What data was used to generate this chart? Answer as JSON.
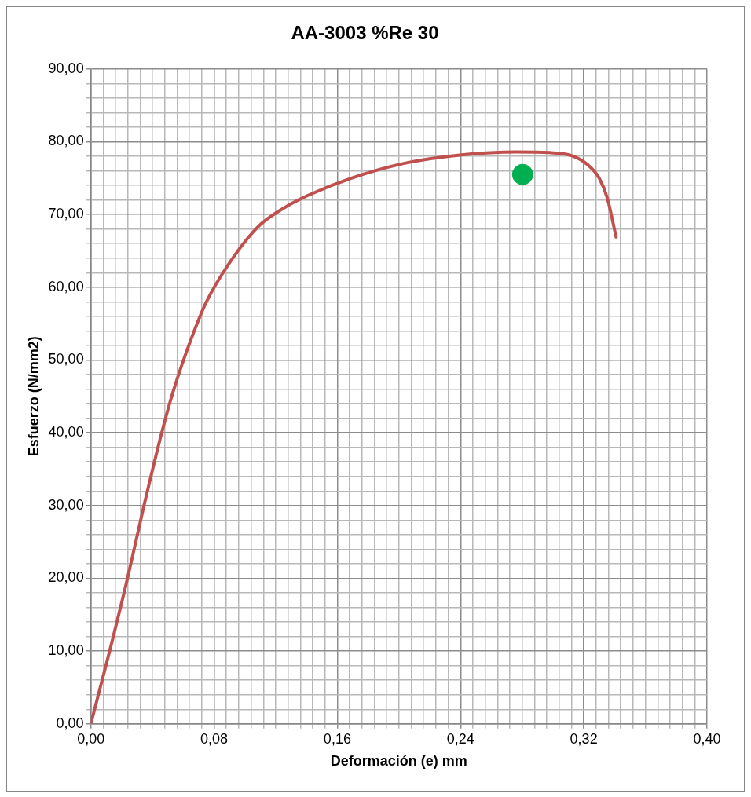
{
  "chart_data": {
    "type": "line",
    "title": "AA-3003 %Re 30",
    "xlabel": "Deformación (e) mm",
    "ylabel": "Esfuerzo (N/mm2)",
    "xlim": [
      0,
      0.4
    ],
    "ylim": [
      0,
      90
    ],
    "xticks": [
      {
        "value": 0,
        "label": "0,00"
      },
      {
        "value": 0.008,
        "label": null
      },
      {
        "value": 0.016,
        "label": null
      },
      {
        "value": 0.024,
        "label": null
      },
      {
        "value": 0.032,
        "label": null
      },
      {
        "value": 0.04,
        "label": null
      },
      {
        "value": 0.048,
        "label": null
      },
      {
        "value": 0.056,
        "label": null
      },
      {
        "value": 0.064,
        "label": null
      },
      {
        "value": 0.072,
        "label": null
      },
      {
        "value": 0.08,
        "label": "0,08"
      },
      {
        "value": 0.088,
        "label": null
      },
      {
        "value": 0.096,
        "label": null
      },
      {
        "value": 0.104,
        "label": null
      },
      {
        "value": 0.112,
        "label": null
      },
      {
        "value": 0.12,
        "label": null
      },
      {
        "value": 0.128,
        "label": null
      },
      {
        "value": 0.136,
        "label": null
      },
      {
        "value": 0.144,
        "label": null
      },
      {
        "value": 0.152,
        "label": null
      },
      {
        "value": 0.16,
        "label": "0,16"
      },
      {
        "value": 0.168,
        "label": null
      },
      {
        "value": 0.176,
        "label": null
      },
      {
        "value": 0.184,
        "label": null
      },
      {
        "value": 0.192,
        "label": null
      },
      {
        "value": 0.2,
        "label": null
      },
      {
        "value": 0.208,
        "label": null
      },
      {
        "value": 0.216,
        "label": null
      },
      {
        "value": 0.224,
        "label": null
      },
      {
        "value": 0.232,
        "label": null
      },
      {
        "value": 0.24,
        "label": "0,24"
      },
      {
        "value": 0.248,
        "label": null
      },
      {
        "value": 0.256,
        "label": null
      },
      {
        "value": 0.264,
        "label": null
      },
      {
        "value": 0.272,
        "label": null
      },
      {
        "value": 0.28,
        "label": null
      },
      {
        "value": 0.288,
        "label": null
      },
      {
        "value": 0.296,
        "label": null
      },
      {
        "value": 0.304,
        "label": null
      },
      {
        "value": 0.312,
        "label": null
      },
      {
        "value": 0.32,
        "label": "0,32"
      },
      {
        "value": 0.328,
        "label": null
      },
      {
        "value": 0.336,
        "label": null
      },
      {
        "value": 0.344,
        "label": null
      },
      {
        "value": 0.352,
        "label": null
      },
      {
        "value": 0.36,
        "label": null
      },
      {
        "value": 0.368,
        "label": null
      },
      {
        "value": 0.376,
        "label": null
      },
      {
        "value": 0.384,
        "label": null
      },
      {
        "value": 0.392,
        "label": null
      },
      {
        "value": 0.4,
        "label": "0,40"
      }
    ],
    "yticks": [
      {
        "value": 0,
        "label": "0,00"
      },
      {
        "value": 2,
        "label": null
      },
      {
        "value": 4,
        "label": null
      },
      {
        "value": 6,
        "label": null
      },
      {
        "value": 8,
        "label": null
      },
      {
        "value": 10,
        "label": "10,00"
      },
      {
        "value": 12,
        "label": null
      },
      {
        "value": 14,
        "label": null
      },
      {
        "value": 16,
        "label": null
      },
      {
        "value": 18,
        "label": null
      },
      {
        "value": 20,
        "label": "20,00"
      },
      {
        "value": 22,
        "label": null
      },
      {
        "value": 24,
        "label": null
      },
      {
        "value": 26,
        "label": null
      },
      {
        "value": 28,
        "label": null
      },
      {
        "value": 30,
        "label": "30,00"
      },
      {
        "value": 32,
        "label": null
      },
      {
        "value": 34,
        "label": null
      },
      {
        "value": 36,
        "label": null
      },
      {
        "value": 38,
        "label": null
      },
      {
        "value": 40,
        "label": "40,00"
      },
      {
        "value": 42,
        "label": null
      },
      {
        "value": 44,
        "label": null
      },
      {
        "value": 46,
        "label": null
      },
      {
        "value": 48,
        "label": null
      },
      {
        "value": 50,
        "label": "50,00"
      },
      {
        "value": 52,
        "label": null
      },
      {
        "value": 54,
        "label": null
      },
      {
        "value": 56,
        "label": null
      },
      {
        "value": 58,
        "label": null
      },
      {
        "value": 60,
        "label": "60,00"
      },
      {
        "value": 62,
        "label": null
      },
      {
        "value": 64,
        "label": null
      },
      {
        "value": 66,
        "label": null
      },
      {
        "value": 68,
        "label": null
      },
      {
        "value": 70,
        "label": "70,00"
      },
      {
        "value": 72,
        "label": null
      },
      {
        "value": 74,
        "label": null
      },
      {
        "value": 76,
        "label": null
      },
      {
        "value": 78,
        "label": null
      },
      {
        "value": 80,
        "label": "80,00"
      },
      {
        "value": 82,
        "label": null
      },
      {
        "value": 84,
        "label": null
      },
      {
        "value": 86,
        "label": null
      },
      {
        "value": 88,
        "label": null
      },
      {
        "value": 90,
        "label": "90,00"
      }
    ],
    "grid": true,
    "legend": false,
    "series": [
      {
        "color": "#c0504d",
        "marker": "none",
        "line_style": "solid",
        "x": [
          0,
          0.0122,
          0.0238,
          0.0345,
          0.046,
          0.0532,
          0.0639,
          0.0746,
          0.0889,
          0.1085,
          0.1246,
          0.1407,
          0.1692,
          0.205,
          0.2407,
          0.2763,
          0.2978,
          0.312,
          0.3228,
          0.33,
          0.3352,
          0.341
        ],
        "values": [
          0,
          10,
          20,
          30,
          40,
          45.5,
          52.2,
          57.8,
          63.0,
          68.3,
          70.8,
          72.6,
          75.0,
          77.1,
          78.2,
          78.6,
          78.5,
          78.1,
          76.8,
          75.0,
          72.3,
          66.9
        ]
      },
      {
        "type": "scatter",
        "color": "#00b050",
        "marker": "circle",
        "x": [
          0.2803
        ],
        "values": [
          75.5
        ]
      }
    ]
  }
}
